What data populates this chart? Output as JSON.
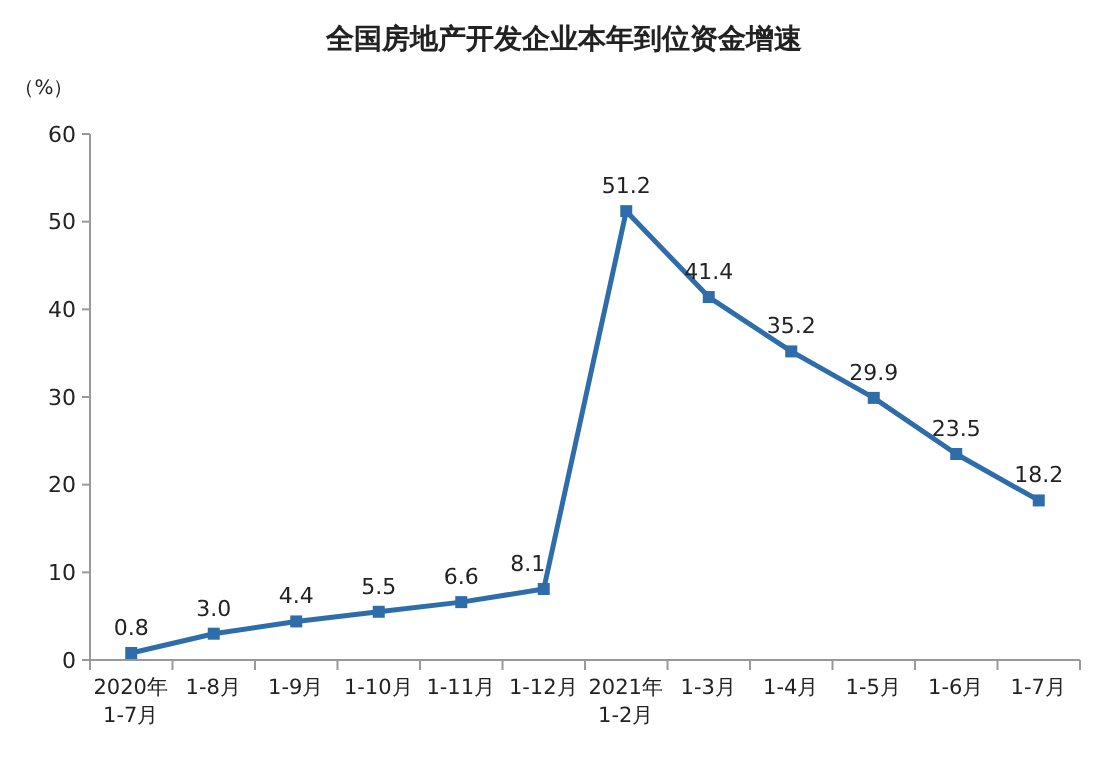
{
  "chart_data": {
    "type": "line",
    "title": "全国房地产开发企业本年到位资金增速",
    "ylabel": "（%）",
    "categories": [
      "2020年\n1-7月",
      "1-8月",
      "1-9月",
      "1-10月",
      "1-11月",
      "1-12月",
      "2021年\n1-2月",
      "1-3月",
      "1-4月",
      "1-5月",
      "1-6月",
      "1-7月"
    ],
    "series": [
      {
        "color": "#2e6daa",
        "values": [
          0.8,
          3.0,
          4.4,
          5.5,
          6.6,
          8.1,
          51.2,
          41.4,
          35.2,
          29.9,
          23.5,
          18.2
        ],
        "value_labels": [
          "0.8",
          "3.0",
          "4.4",
          "5.5",
          "6.6",
          "8.1",
          "51.2",
          "41.4",
          "35.2",
          "29.9",
          "23.5",
          "18.2"
        ]
      }
    ],
    "ylim": [
      0,
      60
    ],
    "yticks": [
      0,
      10,
      20,
      30,
      40,
      50,
      60
    ],
    "grid": false,
    "marker": "square",
    "line_style": "solid"
  }
}
